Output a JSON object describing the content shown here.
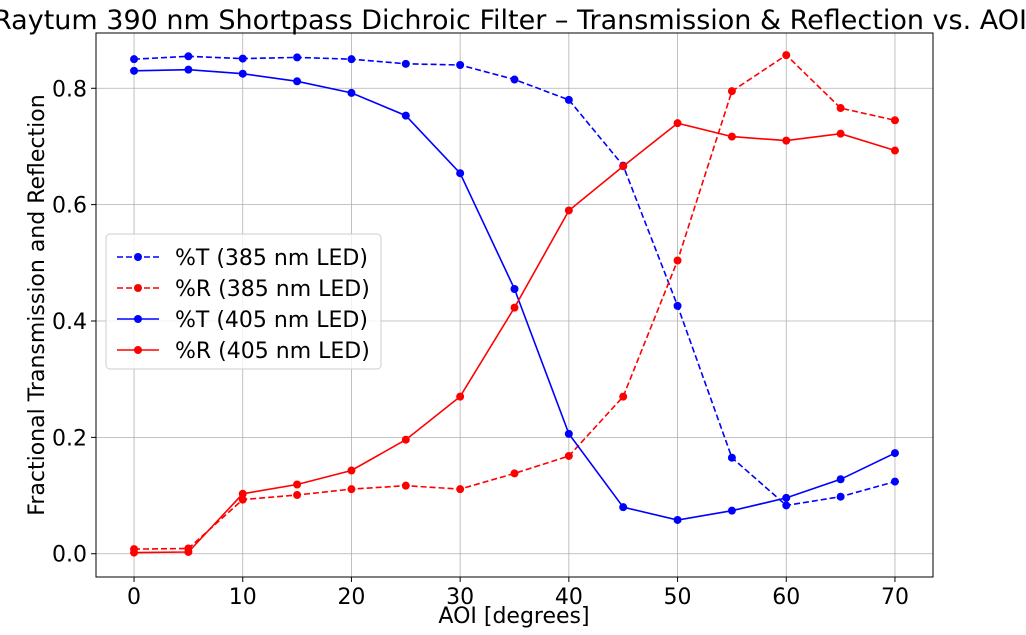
{
  "chart_data": {
    "type": "line",
    "title": "Raytum 390 nm Shortpass Dichroic Filter – Transmission & Reflection vs. AOI",
    "xlabel": "AOI [degrees]",
    "ylabel": "Fractional Transmission and Reflection",
    "xlim": [
      -3.5,
      73.5
    ],
    "ylim": [
      -0.04,
      0.895
    ],
    "xticks": [
      0,
      10,
      20,
      30,
      40,
      50,
      60,
      70
    ],
    "yticks": [
      0.0,
      0.2,
      0.4,
      0.6,
      0.8
    ],
    "xtick_labels": [
      "0",
      "10",
      "20",
      "30",
      "40",
      "50",
      "60",
      "70"
    ],
    "ytick_labels": [
      "0.0",
      "0.2",
      "0.4",
      "0.6",
      "0.8"
    ],
    "grid": true,
    "legend_position": "center-left",
    "x": [
      0,
      5,
      10,
      15,
      20,
      25,
      30,
      35,
      40,
      45,
      50,
      55,
      60,
      65,
      70
    ],
    "series": [
      {
        "name": "%T (385 nm LED)",
        "color": "#0000ff",
        "linestyle": "dashed",
        "values": [
          0.85,
          0.855,
          0.851,
          0.853,
          0.85,
          0.842,
          0.84,
          0.815,
          0.78,
          0.667,
          0.426,
          0.165,
          0.083,
          0.098,
          0.124
        ]
      },
      {
        "name": "%R (385 nm LED)",
        "color": "#ff0000",
        "linestyle": "dashed",
        "values": [
          0.008,
          0.009,
          0.093,
          0.101,
          0.111,
          0.117,
          0.111,
          0.138,
          0.168,
          0.27,
          0.504,
          0.795,
          0.857,
          0.766,
          0.745
        ]
      },
      {
        "name": "%T (405 nm LED)",
        "color": "#0000ff",
        "linestyle": "solid",
        "values": [
          0.83,
          0.832,
          0.825,
          0.812,
          0.792,
          0.753,
          0.654,
          0.455,
          0.206,
          0.08,
          0.058,
          0.074,
          0.096,
          0.128,
          0.173
        ]
      },
      {
        "name": "%R (405 nm LED)",
        "color": "#ff0000",
        "linestyle": "solid",
        "values": [
          0.002,
          0.003,
          0.103,
          0.119,
          0.143,
          0.196,
          0.27,
          0.423,
          0.59,
          0.666,
          0.74,
          0.717,
          0.71,
          0.722,
          0.693
        ]
      }
    ]
  }
}
